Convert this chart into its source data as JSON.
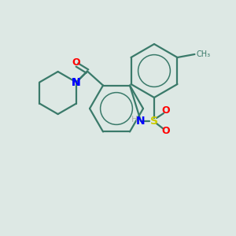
{
  "background_color": "#dde8e4",
  "bond_color": "#3a7a6a",
  "atom_colors": {
    "N": "#0000ff",
    "O": "#ff0000",
    "S": "#cccc00",
    "C": "#3a7a6a",
    "H": "#aaaaaa"
  },
  "figsize": [
    3.0,
    3.0
  ],
  "dpi": 100
}
